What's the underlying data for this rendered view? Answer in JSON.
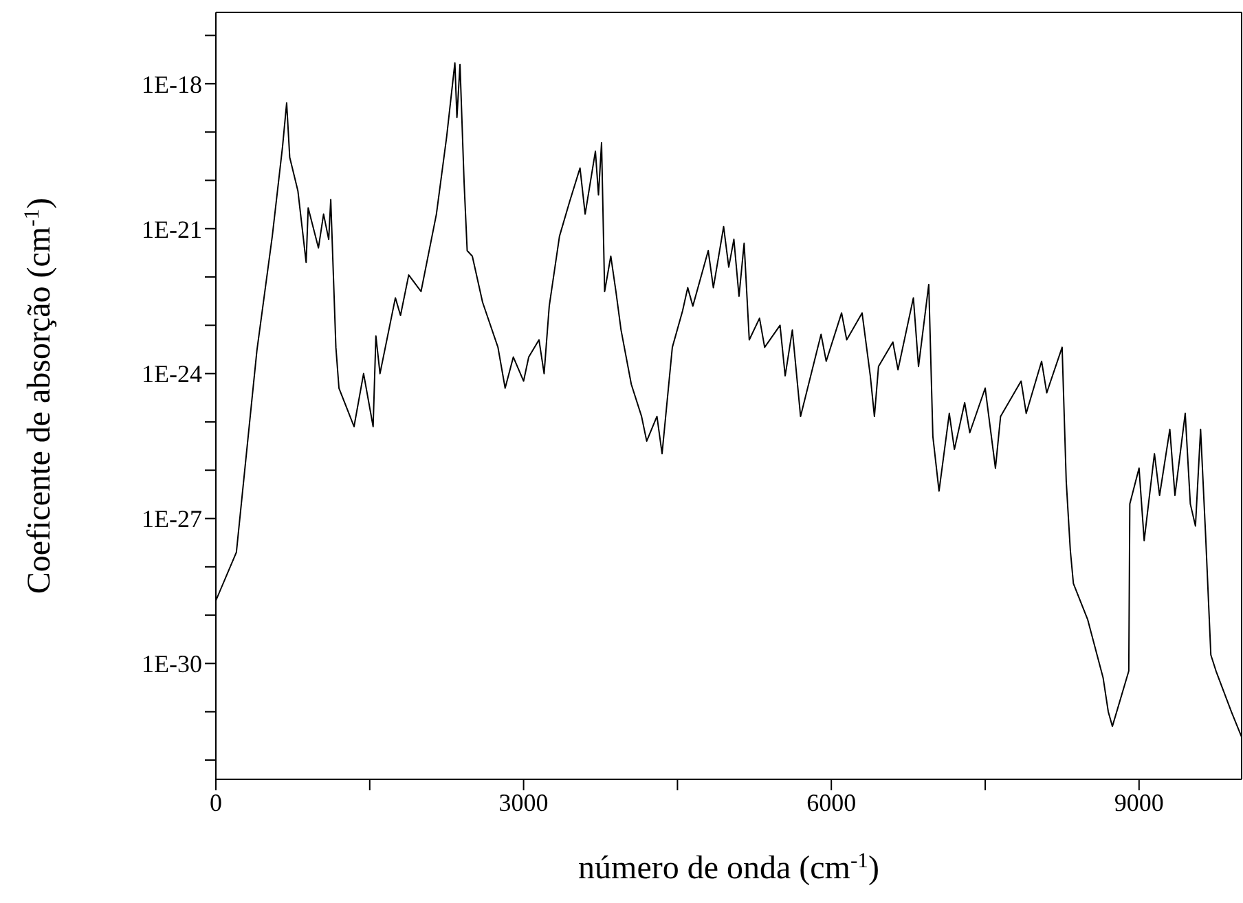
{
  "chart_data": {
    "type": "line",
    "xlabel": "número de onda (cm$^{-1}$)",
    "ylabel": "Coeficente de absorção (cm$^{-1}$)",
    "log": "y",
    "marker": "none",
    "line_style": "solid",
    "xlim": [
      0,
      10000
    ],
    "xticks": [
      0,
      {
        "value": 1500,
        "label": null
      },
      3000,
      {
        "value": 4500,
        "label": null
      },
      6000,
      {
        "value": 7500,
        "label": null
      },
      9000
    ],
    "ylim": [
      4e-33,
      3e-17
    ],
    "yticks": [
      {
        "value": 1e-32,
        "label": null
      },
      {
        "value": 1e-31,
        "label": null
      },
      {
        "value": 1e-30,
        "label": "1E-30"
      },
      {
        "value": 1e-29,
        "label": null
      },
      {
        "value": 1e-28,
        "label": null
      },
      {
        "value": 1e-27,
        "label": "1E-27"
      },
      {
        "value": 1e-26,
        "label": null
      },
      {
        "value": 1e-25,
        "label": null
      },
      {
        "value": 1e-24,
        "label": "1E-24"
      },
      {
        "value": 1e-23,
        "label": null
      },
      {
        "value": 1e-22,
        "label": null
      },
      {
        "value": 1e-21,
        "label": "1E-21"
      },
      {
        "value": 1e-20,
        "label": null
      },
      {
        "value": 1e-19,
        "label": null
      },
      {
        "value": 1e-18,
        "label": "1E-18"
      },
      {
        "value": 1e-17,
        "label": null
      }
    ],
    "series": [
      {
        "color": "#000000",
        "x": [
          0,
          200,
          400,
          550,
          650,
          690,
          720,
          800,
          880,
          900,
          1000,
          1050,
          1100,
          1120,
          1170,
          1200,
          1347,
          1440,
          1533,
          1560,
          1600,
          1750,
          1800,
          1880,
          2000,
          2150,
          2250,
          2330,
          2350,
          2380,
          2420,
          2450,
          2500,
          2600,
          2750,
          2820,
          2900,
          3000,
          3050,
          3150,
          3200,
          3250,
          3350,
          3450,
          3550,
          3600,
          3700,
          3730,
          3760,
          3790,
          3850,
          3900,
          3950,
          4050,
          4150,
          4200,
          4300,
          4350,
          4450,
          4550,
          4600,
          4650,
          4800,
          4850,
          4950,
          5000,
          5050,
          5100,
          5150,
          5200,
          5300,
          5350,
          5500,
          5550,
          5620,
          5700,
          5900,
          5950,
          6100,
          6150,
          6300,
          6380,
          6420,
          6460,
          6600,
          6650,
          6800,
          6850,
          6950,
          6990,
          7050,
          7150,
          7200,
          7300,
          7350,
          7500,
          7600,
          7650,
          7850,
          7900,
          8050,
          8100,
          8250,
          8290,
          8330,
          8360,
          8500,
          8650,
          8700,
          8740,
          8900,
          8910,
          9000,
          9050,
          9150,
          9200,
          9300,
          9350,
          9450,
          9500,
          9550,
          9600,
          9650,
          9700,
          9750,
          9900,
          10000
        ],
        "values": [
          2e-29,
          2e-28,
          3e-24,
          7e-22,
          5e-20,
          4e-19,
          3e-20,
          6e-21,
          2e-22,
          2.7e-21,
          4e-22,
          2e-21,
          6e-22,
          4e-21,
          3.5e-24,
          5e-25,
          8e-26,
          1e-24,
          8e-26,
          6e-24,
          1e-24,
          3.7e-23,
          1.6e-23,
          1.1e-22,
          5e-23,
          2e-21,
          8e-20,
          2.7e-18,
          2e-19,
          2.5e-18,
          9e-21,
          3.5e-22,
          2.7e-22,
          3e-23,
          3.5e-24,
          5e-25,
          2.2e-24,
          7e-25,
          2.2e-24,
          5e-24,
          1e-24,
          2.5e-23,
          7e-22,
          3.7e-21,
          1.8e-20,
          2e-21,
          4e-20,
          5e-21,
          6e-20,
          5e-23,
          2.7e-22,
          5e-23,
          8e-24,
          6e-25,
          1.3e-25,
          4e-26,
          1.3e-25,
          2.2e-26,
          3.5e-24,
          2e-23,
          6e-23,
          2.5e-23,
          3.5e-22,
          6e-23,
          1.1e-21,
          1.6e-22,
          6e-22,
          4e-23,
          5e-22,
          5e-24,
          1.4e-23,
          3.5e-24,
          1e-23,
          9e-25,
          8e-24,
          1.3e-25,
          6.5e-24,
          1.8e-24,
          1.8e-23,
          5e-24,
          1.8e-23,
          9e-25,
          1.3e-25,
          1.4e-24,
          4.5e-24,
          1.2e-24,
          3.7e-23,
          1.4e-24,
          7e-23,
          5e-26,
          3.7e-27,
          1.5e-25,
          2.7e-26,
          2.5e-25,
          6e-26,
          5e-25,
          1.1e-26,
          1.3e-25,
          7e-25,
          1.5e-25,
          1.8e-24,
          4e-25,
          3.5e-24,
          6e-27,
          2.2e-28,
          4.5e-29,
          8e-30,
          5e-31,
          1e-31,
          5e-32,
          7e-31,
          2e-27,
          1.1e-26,
          3.5e-28,
          2.2e-26,
          3e-27,
          7e-26,
          3e-27,
          1.5e-25,
          2e-27,
          7e-28,
          7e-26,
          4e-28,
          1.5e-30,
          7e-31,
          1e-31,
          3e-32
        ]
      }
    ]
  }
}
